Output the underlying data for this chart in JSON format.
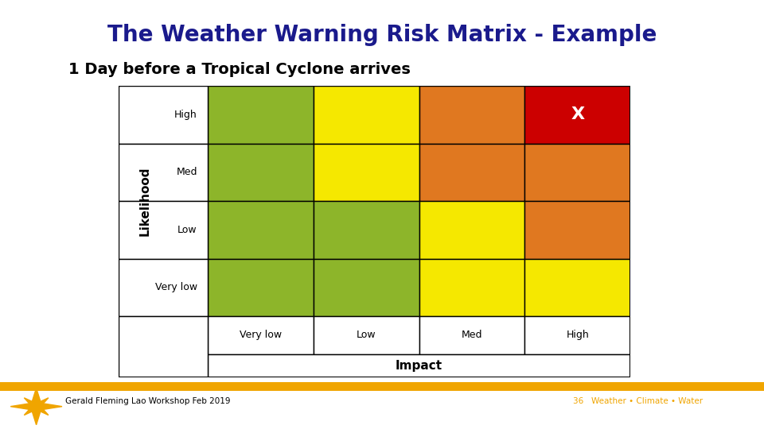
{
  "title": "The Weather Warning Risk Matrix - Example",
  "subtitle": "1 Day before a Tropical Cyclone arrives",
  "title_color": "#1a1a8c",
  "subtitle_color": "#000000",
  "background_color": "#ffffff",
  "footer_bar_color": "#f0a500",
  "footer_text_left": "Gerald Fleming Lao Workshop Feb 2019",
  "footer_text_right": "36   Weather • Climate • Water",
  "likelihood_labels": [
    "High",
    "Med",
    "Low",
    "Very low"
  ],
  "impact_labels": [
    "Very low",
    "Low",
    "Med",
    "High"
  ],
  "matrix_colors": [
    [
      "#8db52a",
      "#f5e800",
      "#e07820",
      "#cc0000"
    ],
    [
      "#8db52a",
      "#f5e800",
      "#e07820",
      "#e07820"
    ],
    [
      "#8db52a",
      "#8db52a",
      "#f5e800",
      "#e07820"
    ],
    [
      "#8db52a",
      "#8db52a",
      "#f5e800",
      "#f5e800"
    ]
  ],
  "marked_cell": [
    0,
    3
  ],
  "mark_label": "X",
  "axis_label_likelihood": "Likelihood",
  "axis_label_impact": "Impact",
  "title_fontsize": 20,
  "subtitle_fontsize": 14,
  "cell_label_fontsize": 9,
  "axis_label_fontsize": 11,
  "mark_fontsize": 16
}
